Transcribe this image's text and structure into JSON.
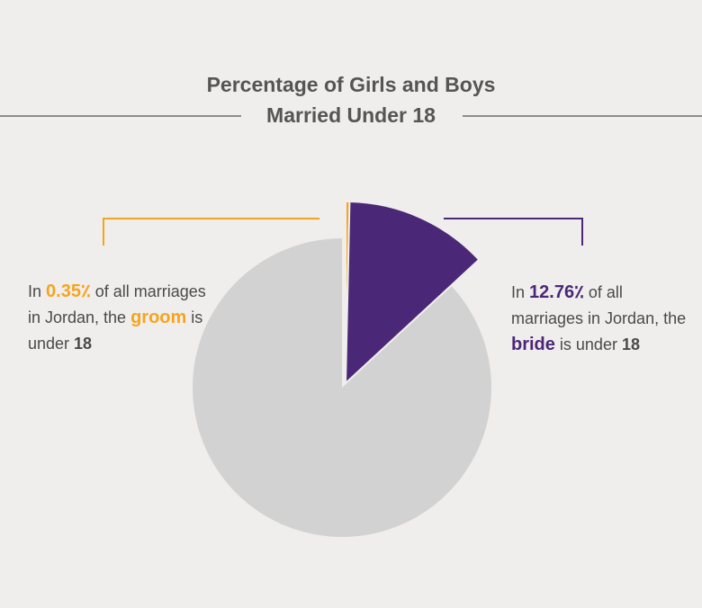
{
  "title": {
    "line1": "Percentage of Girls and Boys",
    "line2": "Married Under 18"
  },
  "callouts": {
    "left": {
      "prefix": "In ",
      "value": "0.35٪",
      "mid": " of all marriages in Jordan, the ",
      "keyword": "groom",
      "suffix": " is under ",
      "age": "18"
    },
    "right": {
      "prefix": "In ",
      "value": "12.76٪",
      "mid": " of all marriages in Jordan, the ",
      "keyword": "bride",
      "suffix": " is under ",
      "age": "18"
    }
  },
  "colors": {
    "groom": "#f5a51d",
    "bride": "#4b2877",
    "rest": "#d2d2d2",
    "background": "#efeeec"
  },
  "chart_data": {
    "type": "pie",
    "title": "Percentage of Girls and Boys Married Under 18",
    "slices": [
      {
        "label": "groom",
        "value": 0.35,
        "color": "#f5a51d",
        "exploded": true
      },
      {
        "label": "bride",
        "value": 12.76,
        "color": "#4b2877",
        "exploded": true
      },
      {
        "label": "other",
        "value": 86.89,
        "color": "#d2d2d2",
        "exploded": false
      }
    ]
  }
}
